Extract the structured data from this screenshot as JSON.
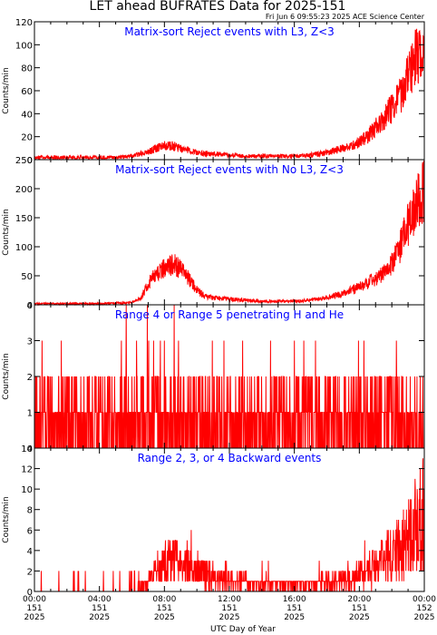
{
  "header": {
    "title": "LET ahead BUFRATES Data for 2025-151",
    "timestamp": "Fri Jun  6 09:55:23 2025 ACE Science Center"
  },
  "colors": {
    "series": "#ff0000",
    "panel_title": "#0000ff",
    "axes": "#000000"
  },
  "xaxis": {
    "label": "UTC Day of Year",
    "ticks": [
      {
        "time": "00:00",
        "day": "151",
        "year": "2025"
      },
      {
        "time": "04:00",
        "day": "151",
        "year": "2025"
      },
      {
        "time": "08:00",
        "day": "151",
        "year": "2025"
      },
      {
        "time": "12:00",
        "day": "151",
        "year": "2025"
      },
      {
        "time": "16:00",
        "day": "151",
        "year": "2025"
      },
      {
        "time": "20:00",
        "day": "151",
        "year": "2025"
      },
      {
        "time": "00:00",
        "day": "152",
        "year": "2025"
      }
    ]
  },
  "chart_data": [
    {
      "type": "line",
      "title": "Matrix-sort Reject events with L3, Z<3",
      "ylabel": "Counts/min",
      "xlim": [
        0,
        24
      ],
      "x_unit": "hours UTC, day 151",
      "ylim": [
        0,
        120
      ],
      "yticks": [
        0,
        20,
        40,
        60,
        80,
        100,
        120
      ],
      "x": [
        0,
        1,
        2,
        3,
        4,
        5,
        6,
        7,
        7.5,
        8,
        8.5,
        9,
        9.5,
        10,
        11,
        12,
        13,
        14,
        15,
        16,
        17,
        18,
        19,
        20,
        20.5,
        21,
        21.5,
        22,
        22.5,
        23,
        23.5,
        24
      ],
      "y": [
        2,
        2,
        2,
        2,
        2,
        2,
        3,
        7,
        10,
        12,
        12,
        10,
        8,
        6,
        5,
        4,
        3,
        3,
        3,
        3,
        4,
        6,
        10,
        15,
        20,
        28,
        35,
        45,
        55,
        72,
        90,
        92
      ]
    },
    {
      "type": "line",
      "title": "Matrix-sort Reject events with No L3, Z<3",
      "ylabel": "Counts/min",
      "xlim": [
        0,
        24
      ],
      "x_unit": "hours UTC, day 151",
      "ylim": [
        0,
        250
      ],
      "yticks": [
        0,
        50,
        100,
        150,
        200,
        250
      ],
      "x": [
        0,
        1,
        2,
        3,
        4,
        5,
        6,
        6.5,
        7,
        7.5,
        8,
        8.5,
        9,
        9.5,
        10,
        10.5,
        11,
        12,
        13,
        14,
        15,
        16,
        17,
        18,
        19,
        20,
        20.5,
        21,
        21.5,
        22,
        22.5,
        23,
        23.5,
        24
      ],
      "y": [
        2,
        2,
        2,
        2,
        2,
        3,
        4,
        10,
        35,
        55,
        65,
        70,
        62,
        45,
        25,
        15,
        12,
        10,
        8,
        6,
        6,
        6,
        8,
        12,
        20,
        30,
        38,
        45,
        55,
        70,
        100,
        140,
        175,
        200
      ]
    },
    {
      "type": "line",
      "title": "Range 4 or Range 5 penetrating H and He",
      "ylabel": "Counts/min",
      "xlim": [
        0,
        24
      ],
      "x_unit": "hours UTC, day 151",
      "ylim": [
        0,
        4
      ],
      "yticks": [
        0,
        1,
        2,
        3,
        4
      ],
      "x": [
        0,
        2,
        4,
        6,
        8,
        10,
        12,
        14,
        16,
        18,
        20,
        22,
        24
      ],
      "y": [
        1,
        1,
        1,
        1,
        1,
        1,
        1,
        1,
        1,
        1,
        1,
        1,
        1
      ],
      "range": [
        0,
        4
      ],
      "description_values": "noisy integer counts 0-4, mostly 0-2"
    },
    {
      "type": "line",
      "title": "Range 2, 3, or 4 Backward events",
      "ylabel": "Counts/min",
      "xlim": [
        0,
        24
      ],
      "x_unit": "hours UTC, day 151",
      "ylim": [
        0,
        14
      ],
      "yticks": [
        0,
        2,
        4,
        6,
        8,
        10,
        12,
        14
      ],
      "x": [
        0,
        2,
        4,
        6,
        6.5,
        7,
        7.5,
        8,
        8.5,
        9,
        10,
        11,
        12,
        13,
        14,
        15,
        16,
        17,
        18,
        19,
        20,
        20.5,
        21,
        21.5,
        22,
        22.5,
        23,
        23.5,
        24
      ],
      "y": [
        0,
        0,
        0,
        0,
        0.5,
        1,
        2,
        2.5,
        3,
        2.5,
        2,
        1.5,
        1,
        1,
        0.8,
        0.8,
        0.8,
        0.8,
        1,
        1,
        1.5,
        2,
        2.5,
        3,
        3.5,
        4,
        5,
        6,
        8
      ]
    }
  ]
}
